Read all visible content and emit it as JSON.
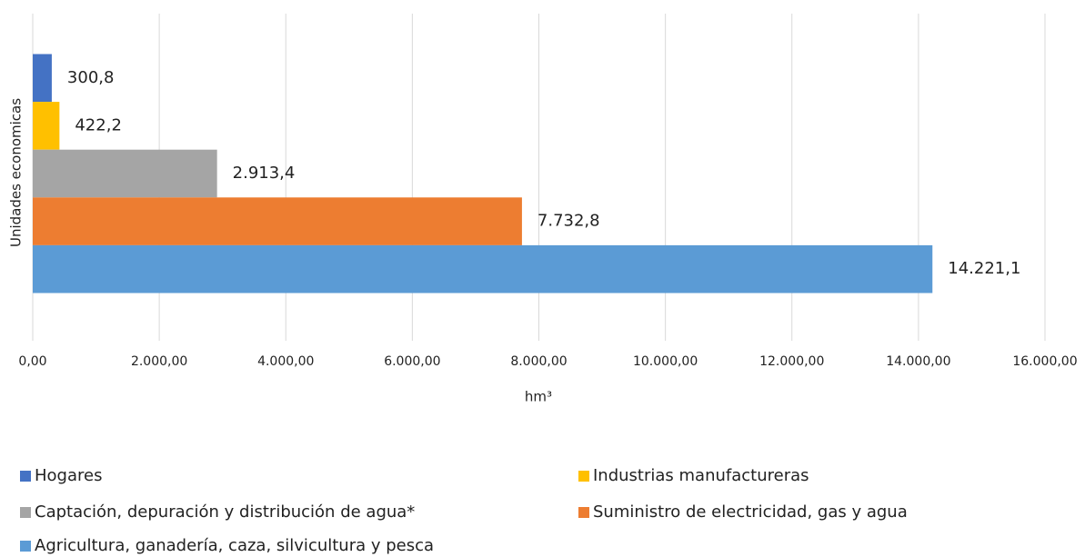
{
  "chart_data": {
    "type": "bar",
    "orientation": "horizontal",
    "y_label": "Unidades economicas",
    "x_label": "hm³",
    "categories": [
      null
    ],
    "series": [
      {
        "name": "Hogares",
        "color": "#4472c4",
        "values": [
          300.8
        ],
        "value_labels": [
          "300,8"
        ]
      },
      {
        "name": "Industrias manufactureras",
        "color": "#ffc000",
        "values": [
          422.2
        ],
        "value_labels": [
          "422,2"
        ]
      },
      {
        "name": "Captación, depuración y distribución de agua*",
        "color": "#a5a5a5",
        "values": [
          2913.4
        ],
        "value_labels": [
          "2.913,4"
        ]
      },
      {
        "name": "Suministro de electricidad, gas y agua",
        "color": "#ed7d31",
        "values": [
          7732.8
        ],
        "value_labels": [
          "7.732,8"
        ]
      },
      {
        "name": "Agricultura, ganadería, caza, silvicultura y pesca",
        "color": "#5b9bd5",
        "values": [
          14221.1
        ],
        "value_labels": [
          "14.221,1"
        ]
      }
    ],
    "xlim": [
      0,
      16000
    ],
    "xticks": [
      {
        "value": 0,
        "label": "0,00"
      },
      {
        "value": 2000,
        "label": "2.000,00"
      },
      {
        "value": 4000,
        "label": "4.000,00"
      },
      {
        "value": 6000,
        "label": "6.000,00"
      },
      {
        "value": 8000,
        "label": "8.000,00"
      },
      {
        "value": 10000,
        "label": "10.000,00"
      },
      {
        "value": 12000,
        "label": "12.000,00"
      },
      {
        "value": 14000,
        "label": "14.000,00"
      },
      {
        "value": 16000,
        "label": "16.000,00"
      }
    ],
    "grid": true,
    "legend": "bottom"
  }
}
